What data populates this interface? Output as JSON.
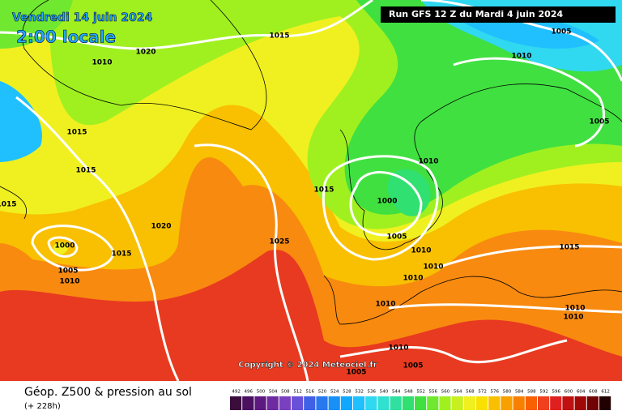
{
  "header": {
    "date": "Vendredi 14 juin 2024",
    "time": "2:00 locale",
    "run": "Run GFS 12 Z du Mardi 4 juin 2024"
  },
  "isobar_labels": [
    "1015",
    "1005",
    "1010",
    "1020",
    "1010",
    "1015",
    "1015",
    "1005",
    "1015",
    "1015",
    "1000",
    "1010",
    "1020",
    "1025",
    "1005",
    "1015",
    "1000",
    "1015",
    "1005",
    "1010",
    "1010",
    "1010",
    "1010",
    "1010",
    "1010",
    "1010",
    "1010",
    "1005",
    "1005"
  ],
  "copyright": "Copyright © 2024 Meteociel.fr",
  "footer": {
    "title": "Géop. Z500 & pression au sol",
    "subtitle": "(+ 228h)"
  },
  "legend": {
    "labels": [
      492,
      496,
      500,
      504,
      508,
      512,
      516,
      520,
      524,
      528,
      532,
      536,
      540,
      544,
      548,
      552,
      556,
      560,
      564,
      568,
      572,
      576,
      580,
      584,
      588,
      592,
      596,
      600,
      604,
      608,
      612
    ],
    "colors": [
      "#3a0d3c",
      "#4b1060",
      "#5c1a80",
      "#6e2aa0",
      "#7a40c0",
      "#6a50d8",
      "#4060e8",
      "#2878f0",
      "#1890f8",
      "#10a8ff",
      "#20c0ff",
      "#30d8f0",
      "#30e0d0",
      "#30e0a0",
      "#30e070",
      "#40e040",
      "#70e830",
      "#a0f020",
      "#c8f020",
      "#f0f020",
      "#f8e000",
      "#f8c000",
      "#f8a000",
      "#f88000",
      "#f86000",
      "#f04020",
      "#e02020",
      "#c01010",
      "#a00808",
      "#700404",
      "#200000"
    ]
  }
}
